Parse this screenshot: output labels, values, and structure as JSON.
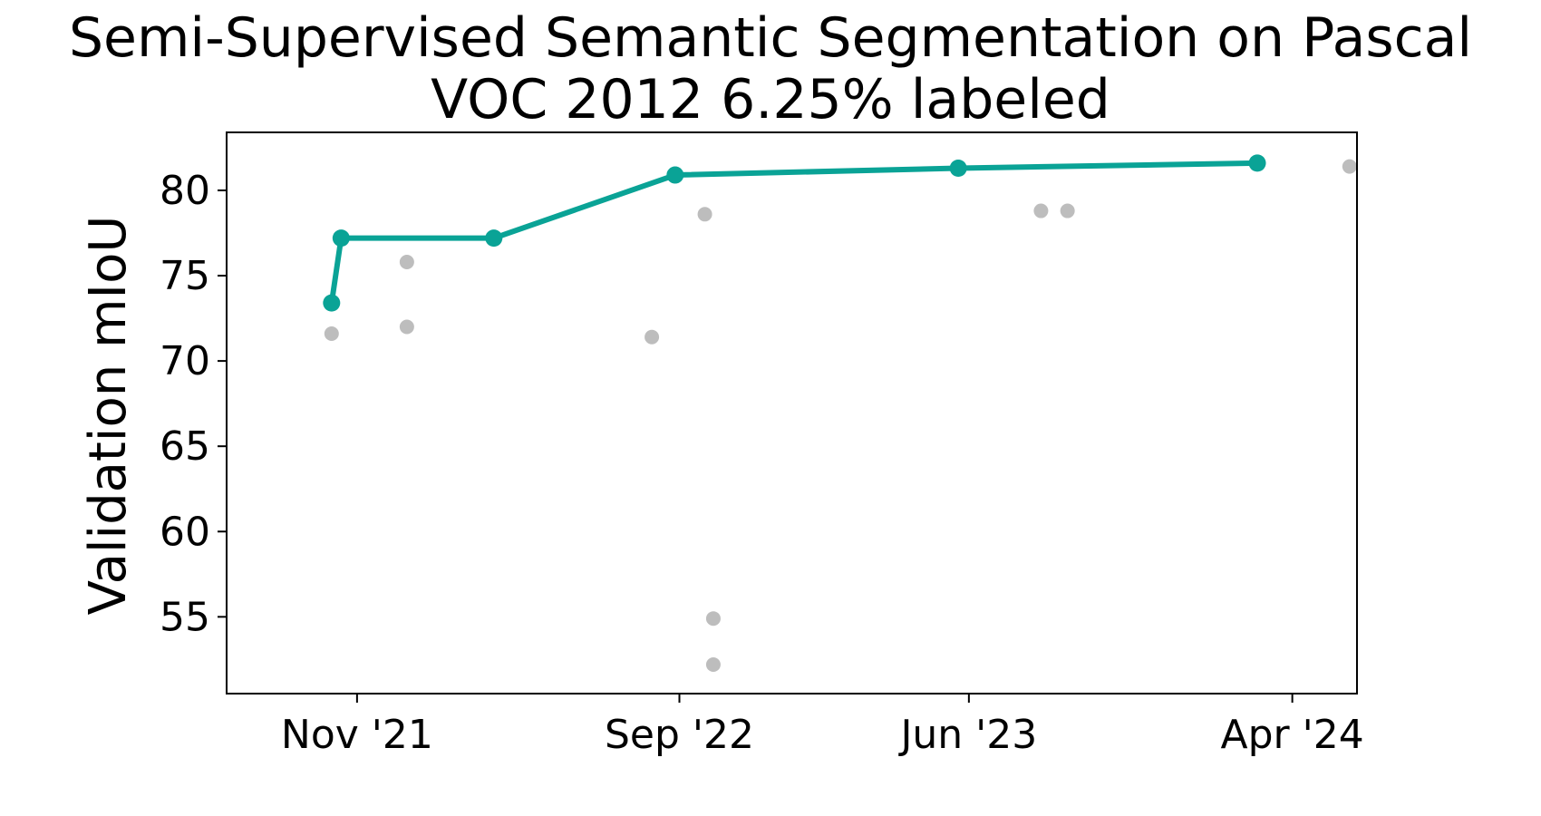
{
  "chart_data": {
    "type": "scatter",
    "title_line1": "Semi-Supervised Semantic Segmentation on Pascal",
    "title_line2": "VOC 2012 6.25% labeled",
    "xlabel": "",
    "ylabel": "Validation mIoU",
    "xlim": [
      "2021-07-01",
      "2024-06-01"
    ],
    "ylim": [
      50.5,
      83.4
    ],
    "grid": false,
    "x_ticks": [
      {
        "date": "2021-11-01",
        "label": "Nov '21"
      },
      {
        "date": "2022-09-01",
        "label": "Sep '22"
      },
      {
        "date": "2023-06-01",
        "label": "Jun '23"
      },
      {
        "date": "2024-04-01",
        "label": "Apr '24"
      }
    ],
    "y_ticks": [
      55,
      60,
      65,
      70,
      75,
      80
    ],
    "series": [
      {
        "kind": "frontier",
        "color": "#0aa396",
        "points": [
          {
            "x": "2021-10-08",
            "y": 73.4
          },
          {
            "x": "2021-10-17",
            "y": 77.2
          },
          {
            "x": "2022-03-10",
            "y": 77.2
          },
          {
            "x": "2022-08-28",
            "y": 80.9
          },
          {
            "x": "2023-05-22",
            "y": 81.3
          },
          {
            "x": "2024-02-28",
            "y": 81.6
          }
        ]
      },
      {
        "kind": "other",
        "color": "#bdbdbd",
        "points": [
          {
            "x": "2021-10-08",
            "y": 71.6
          },
          {
            "x": "2021-12-18",
            "y": 75.8
          },
          {
            "x": "2021-12-18",
            "y": 72.0
          },
          {
            "x": "2022-08-06",
            "y": 71.4
          },
          {
            "x": "2022-09-25",
            "y": 78.6
          },
          {
            "x": "2022-10-03",
            "y": 54.9
          },
          {
            "x": "2022-10-03",
            "y": 52.2
          },
          {
            "x": "2023-08-08",
            "y": 78.8
          },
          {
            "x": "2023-09-02",
            "y": 78.8
          },
          {
            "x": "2024-05-25",
            "y": 81.4
          }
        ]
      }
    ]
  }
}
